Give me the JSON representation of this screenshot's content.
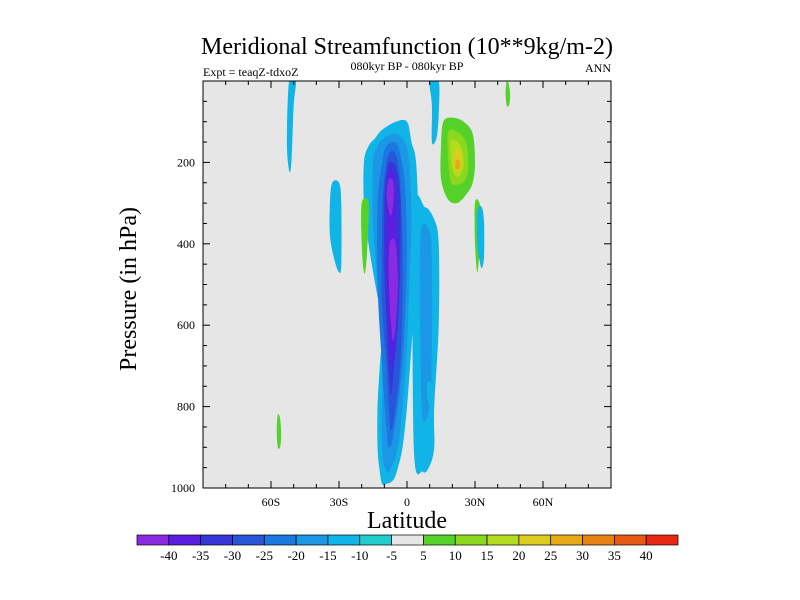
{
  "chart_data": {
    "type": "contour",
    "title": "Meridional Streamfunction (10**9kg/m-2)",
    "subtitle": "080kyr BP - 080kyr BP",
    "left_label": "Expt = teaqZ-tdxoZ",
    "right_label": "ANN",
    "xlabel": "Latitude",
    "ylabel": "Pressure (in hPa)",
    "x_ticks": [
      {
        "value": -60,
        "label": "60S"
      },
      {
        "value": -30,
        "label": "30S"
      },
      {
        "value": 0,
        "label": "0"
      },
      {
        "value": 30,
        "label": "30N"
      },
      {
        "value": 60,
        "label": "60N"
      }
    ],
    "y_ticks": [
      {
        "value": 200,
        "label": "200"
      },
      {
        "value": 400,
        "label": "400"
      },
      {
        "value": 600,
        "label": "600"
      },
      {
        "value": 800,
        "label": "800"
      },
      {
        "value": 1000,
        "label": "1000"
      }
    ],
    "xlim": [
      -90,
      90
    ],
    "ylim": [
      0,
      1000
    ],
    "background_color": "#e6e6e6",
    "colorbar": {
      "labels": [
        "-40",
        "-35",
        "-30",
        "-25",
        "-20",
        "-15",
        "-10",
        "-5",
        "5",
        "10",
        "15",
        "20",
        "25",
        "30",
        "35",
        "40"
      ],
      "colors": [
        "#8a2be2",
        "#5a1ee0",
        "#3535d8",
        "#2a55d8",
        "#1a78e0",
        "#1a98e6",
        "#10b4e6",
        "#20cccc",
        "#e6e6e6",
        "#55d22a",
        "#8cd81e",
        "#b4dc1e",
        "#dccc1e",
        "#e6aa14",
        "#e68214",
        "#e65a14",
        "#e62814"
      ]
    },
    "contours": [
      {
        "name": "main-negative-cell",
        "value": -5,
        "lat": [
          -11,
          -5,
          0,
          2,
          4,
          5,
          4,
          2,
          0,
          -2,
          -4,
          -6,
          -9,
          -11,
          -12,
          -13,
          -13,
          -12,
          -11,
          -14,
          -17,
          -19,
          -19,
          -17,
          -14,
          -11
        ],
        "p": [
          120,
          100,
          100,
          150,
          200,
          350,
          500,
          650,
          800,
          900,
          950,
          980,
          990,
          990,
          960,
          900,
          800,
          700,
          600,
          500,
          400,
          300,
          200,
          160,
          140,
          120
        ]
      },
      {
        "name": "right-lobe",
        "value": -5,
        "lat": [
          3,
          8,
          12,
          14,
          14,
          12,
          12,
          10,
          7,
          3,
          3
        ],
        "p": [
          330,
          310,
          340,
          400,
          600,
          800,
          900,
          945,
          960,
          900,
          330
        ]
      },
      {
        "name": "main-cell-l10",
        "value": -10,
        "lat": [
          -10,
          -5,
          -1,
          1,
          2,
          1,
          0,
          -2,
          -4,
          -7,
          -9,
          -11,
          -11,
          -13,
          -15,
          -15,
          -13,
          -10
        ],
        "p": [
          140,
          130,
          150,
          200,
          350,
          500,
          650,
          800,
          900,
          950,
          960,
          900,
          700,
          500,
          350,
          200,
          160,
          140
        ]
      },
      {
        "name": "right-lobe-l10",
        "value": -10,
        "lat": [
          6,
          10,
          11,
          11,
          10,
          7,
          6,
          6
        ],
        "p": [
          380,
          370,
          450,
          650,
          800,
          830,
          700,
          380
        ]
      },
      {
        "name": "main-cell-l15",
        "value": -15,
        "lat": [
          -9,
          -5,
          -3,
          -1,
          0,
          -1,
          -3,
          -6,
          -8,
          -9,
          -11,
          -13,
          -13,
          -11,
          -9
        ],
        "p": [
          160,
          150,
          180,
          250,
          400,
          600,
          750,
          870,
          900,
          860,
          700,
          500,
          300,
          200,
          160
        ]
      },
      {
        "name": "main-cell-l20",
        "value": -20,
        "lat": [
          -8,
          -5,
          -3,
          -2,
          -2,
          -3,
          -5,
          -7,
          -8,
          -9,
          -11,
          -11,
          -10,
          -8
        ],
        "p": [
          180,
          180,
          250,
          400,
          550,
          700,
          800,
          860,
          800,
          700,
          550,
          350,
          240,
          180
        ]
      },
      {
        "name": "main-cell-l25",
        "value": -25,
        "lat": [
          -8,
          -5,
          -3,
          -3,
          -4,
          -6,
          -7,
          -8,
          -9,
          -10,
          -10,
          -9,
          -8
        ],
        "p": [
          200,
          210,
          280,
          450,
          600,
          720,
          770,
          720,
          600,
          450,
          300,
          230,
          200
        ]
      },
      {
        "name": "main-cell-l30",
        "value": -30,
        "lat": [
          -8,
          -6,
          -5,
          -4,
          -5,
          -6,
          -7,
          -8,
          -9,
          -9,
          -8
        ],
        "p": [
          220,
          230,
          290,
          450,
          600,
          680,
          700,
          600,
          450,
          300,
          220
        ]
      },
      {
        "name": "upper-core",
        "value": -35,
        "lat": [
          -8,
          -6,
          -6,
          -7,
          -8,
          -9,
          -8
        ],
        "p": [
          240,
          250,
          300,
          330,
          320,
          280,
          240
        ]
      },
      {
        "name": "lower-core",
        "value": -35,
        "lat": [
          -7,
          -5,
          -4,
          -5,
          -6,
          -7,
          -8,
          -8,
          -7
        ],
        "p": [
          390,
          400,
          500,
          600,
          640,
          600,
          500,
          420,
          390
        ]
      },
      {
        "name": "lower-core-l40",
        "value": -40,
        "lat": [
          -6,
          -5,
          -5,
          -6,
          -7,
          -7,
          -6
        ],
        "p": [
          460,
          490,
          550,
          600,
          560,
          490,
          460
        ]
      },
      {
        "name": "top-column",
        "value": -5,
        "lat": [
          -52,
          -49,
          -50,
          -51,
          -52,
          -53,
          -52
        ],
        "p": [
          0,
          0,
          60,
          200,
          220,
          150,
          0
        ]
      },
      {
        "name": "right-column-top",
        "value": -5,
        "lat": [
          10,
          14,
          14,
          13,
          11,
          11,
          10
        ],
        "p": [
          0,
          0,
          80,
          140,
          150,
          60,
          0
        ]
      },
      {
        "name": "right-blob",
        "value": -5,
        "lat": [
          9,
          11,
          12,
          12,
          11,
          10,
          9,
          9
        ],
        "p": [
          740,
          745,
          760,
          790,
          810,
          800,
          780,
          740
        ]
      },
      {
        "name": "upper-right-pos",
        "value": 5,
        "lat": [
          16,
          20,
          25,
          29,
          30,
          29,
          26,
          22,
          18,
          15,
          15,
          16
        ],
        "p": [
          100,
          90,
          100,
          130,
          200,
          250,
          280,
          300,
          290,
          240,
          160,
          100
        ]
      },
      {
        "name": "upper-right-pos-l10",
        "value": 10,
        "lat": [
          18,
          22,
          26,
          27,
          26,
          22,
          19,
          18
        ],
        "p": [
          130,
          125,
          150,
          200,
          240,
          255,
          240,
          130
        ]
      },
      {
        "name": "upper-right-pos-l15",
        "value": 15,
        "lat": [
          19,
          22,
          24,
          25,
          24,
          22,
          20,
          19
        ],
        "p": [
          150,
          148,
          165,
          200,
          225,
          235,
          215,
          150
        ]
      },
      {
        "name": "upper-right-pos-l20",
        "value": 20,
        "lat": [
          21,
          23,
          24,
          24,
          23,
          21,
          21
        ],
        "p": [
          170,
          168,
          185,
          210,
          220,
          215,
          170
        ]
      },
      {
        "name": "upper-right-pos-l25",
        "value": 25,
        "lat": [
          21.5,
          23,
          23.5,
          23,
          21.5,
          21.5
        ],
        "p": [
          195,
          195,
          205,
          215,
          215,
          195
        ]
      },
      {
        "name": "left-center-pos",
        "value": 5,
        "lat": [
          -20,
          -17,
          -17,
          -18,
          -19,
          -20,
          -20
        ],
        "p": [
          300,
          295,
          350,
          450,
          470,
          400,
          300
        ]
      },
      {
        "name": "far-right-pos",
        "value": 5,
        "lat": [
          30,
          32,
          33,
          32,
          31,
          30,
          30
        ],
        "p": [
          300,
          300,
          350,
          420,
          470,
          400,
          300
        ]
      },
      {
        "name": "top-right-pos",
        "value": 5,
        "lat": [
          44,
          45,
          45.5,
          45,
          44,
          43.5,
          44
        ],
        "p": [
          0,
          10,
          40,
          60,
          60,
          30,
          0
        ]
      },
      {
        "name": "bottom-left-pos",
        "value": 5,
        "lat": [
          -57,
          -56,
          -55.5,
          -56,
          -57,
          -57.5,
          -57
        ],
        "p": [
          820,
          830,
          870,
          900,
          900,
          860,
          820
        ]
      },
      {
        "name": "left-neg-column",
        "value": -5,
        "lat": [
          -33,
          -30,
          -29,
          -29,
          -30,
          -32,
          -34,
          -34,
          -33
        ],
        "p": [
          250,
          250,
          300,
          450,
          470,
          440,
          380,
          300,
          250
        ]
      },
      {
        "name": "right-neg-column",
        "value": -5,
        "lat": [
          31,
          33,
          34,
          34,
          33,
          32,
          31,
          31
        ],
        "p": [
          320,
          310,
          350,
          430,
          460,
          440,
          400,
          320
        ]
      }
    ]
  }
}
